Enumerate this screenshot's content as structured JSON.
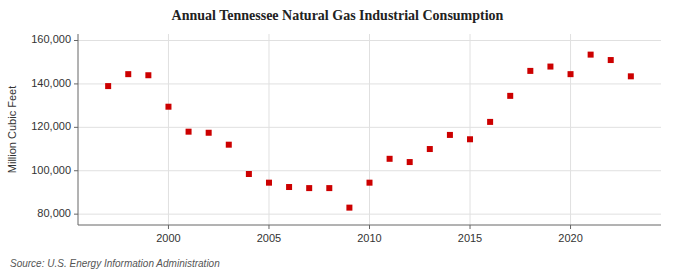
{
  "chart_data": {
    "type": "scatter",
    "title": "Annual Tennessee Natural Gas Industrial Consumption",
    "y_label": "Million Cubic Feet",
    "source": "Source: U.S. Energy Information Administration",
    "x": [
      1997,
      1998,
      1999,
      2000,
      2001,
      2002,
      2003,
      2004,
      2005,
      2006,
      2007,
      2008,
      2009,
      2010,
      2011,
      2012,
      2013,
      2014,
      2015,
      2016,
      2017,
      2018,
      2019,
      2020,
      2021,
      2022,
      2023
    ],
    "values": [
      139000,
      144500,
      144000,
      129500,
      118000,
      117500,
      112000,
      98500,
      94500,
      92500,
      92000,
      92000,
      83000,
      94500,
      105500,
      104000,
      110000,
      116500,
      114500,
      122500,
      134500,
      146000,
      148000,
      144500,
      153500,
      151000,
      143500
    ],
    "color": "#cc0000",
    "marker": "square",
    "xlim": [
      1995.5,
      2024.5
    ],
    "ylim": [
      75000,
      163000
    ],
    "xticks": [
      2000,
      2005,
      2010,
      2015,
      2020
    ],
    "yticks": [
      {
        "value": 80000,
        "label": "80,000"
      },
      {
        "value": 100000,
        "label": "100,000"
      },
      {
        "value": 120000,
        "label": "120,000"
      },
      {
        "value": 140000,
        "label": "140,000"
      },
      {
        "value": 160000,
        "label": "160,000"
      }
    ],
    "grid": true
  }
}
